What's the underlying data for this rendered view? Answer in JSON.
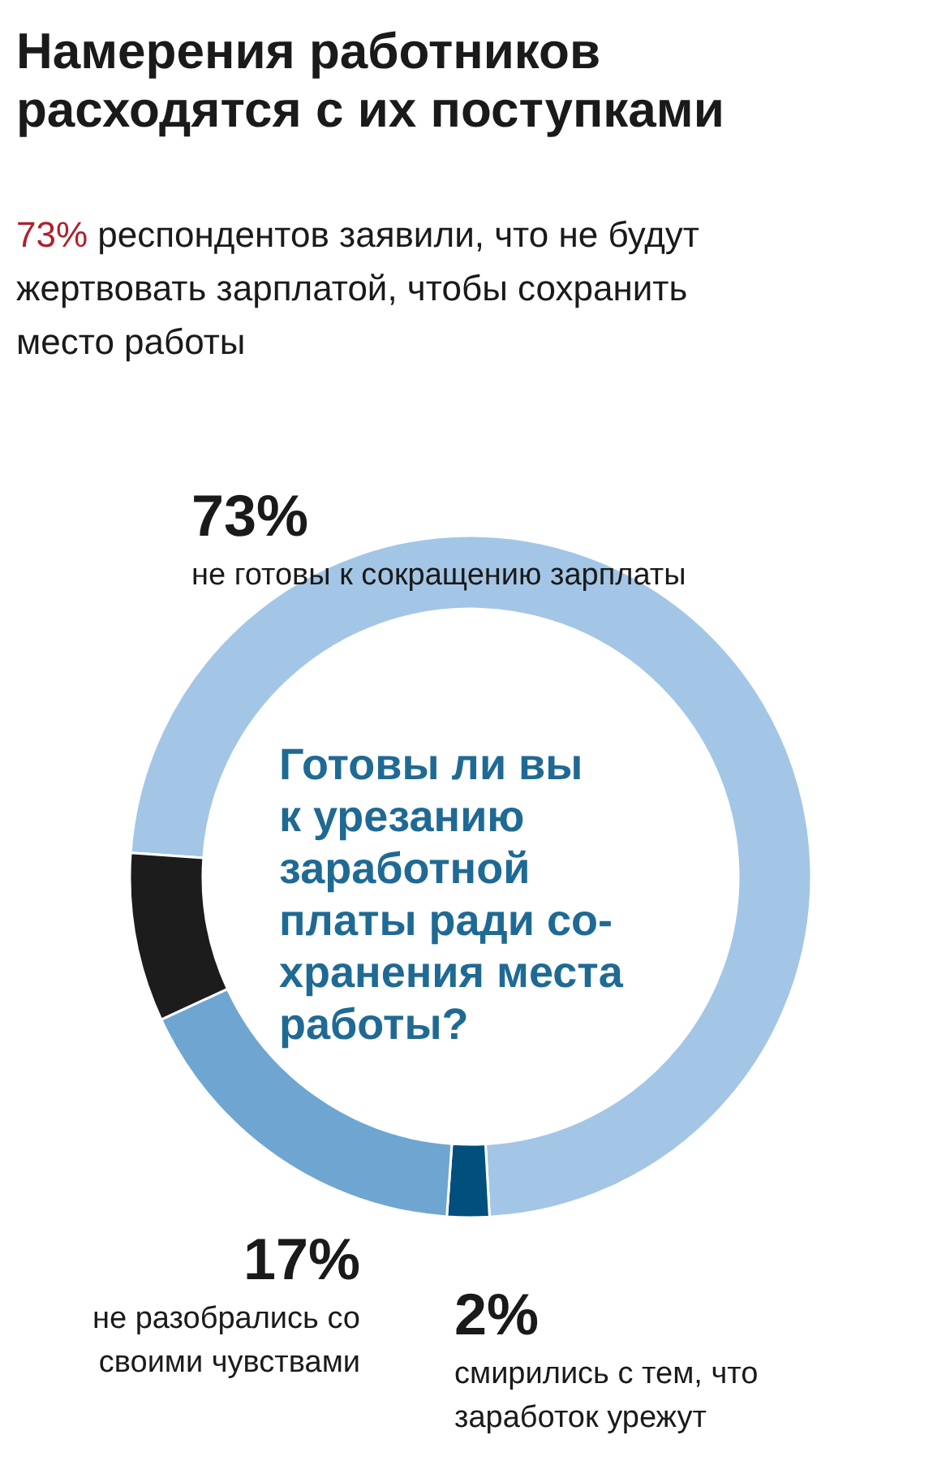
{
  "chart_data": {
    "type": "donut",
    "title": "Намерения работников\nрасходятся с их поступками",
    "subtitle": "73% респондентов заявили, что не будут\nжертвовать зарплатой, чтобы сохранить\nместо работы",
    "categories": [
      "не готовы к сокращению зарплаты",
      "смирились с тем, что\nзаработок урежут",
      "не разобрались со\nсвоими чувствами",
      null
    ],
    "values": [
      73,
      2,
      17,
      8
    ],
    "value_labels": [
      "73%",
      "2%",
      "17%",
      null
    ],
    "colors": [
      "#a3c6e6",
      "#004f7c",
      "#6ea6d1",
      "#1c1c1c"
    ],
    "annotations": [
      "Готовы ли вы\nк урезанию\nзаработной\nплаты ради со-\nхранения места\nработы?"
    ]
  }
}
